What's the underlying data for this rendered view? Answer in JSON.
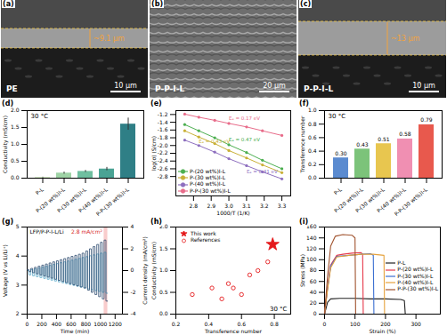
{
  "images": [
    {
      "panel": "(a)",
      "thickness": "~9.1 μm",
      "label": "PE",
      "scale_bar": "10 μm"
    },
    {
      "panel": "(b)",
      "label": "P-P-I-L",
      "scale_bar": "20 μm"
    },
    {
      "panel": "(c)",
      "thickness": "~13 μm",
      "label": "P-P-I-L",
      "scale_bar": "10 μm"
    }
  ],
  "chart_data": [
    {
      "panel": "(d)",
      "type": "bar",
      "annotation": "30 °C",
      "y_label": "Conductivity (mS/cm)",
      "categories": [
        "P-L",
        "P-(20 wt%)I-L",
        "P-(30 wt%)I-L",
        "P-(40 wt%)I-L",
        "P-P-(30 wt%)I-L"
      ],
      "values": [
        0.02,
        0.15,
        0.2,
        0.27,
        1.6
      ],
      "errors": [
        0.01,
        0.03,
        0.03,
        0.05,
        0.18
      ],
      "colors": [
        "#c9e6b8",
        "#9fd3a6",
        "#6fbfa0",
        "#4aa394",
        "#2f7f86"
      ],
      "ylim": [
        0,
        2
      ],
      "yticks": [
        {
          "value": 0,
          "label": "0.0"
        },
        0.5,
        {
          "value": 1,
          "label": "1.0"
        },
        1.5,
        {
          "value": 2,
          "label": "2.0"
        }
      ]
    },
    {
      "panel": "(e)",
      "type": "line",
      "marker": "circle",
      "legend": "bottom-left",
      "x_label": "1000/T (1/K)",
      "y_label": "log(σ) (S/cm)",
      "x": [
        2.75,
        2.83,
        2.92,
        3.0,
        3.1,
        3.19,
        3.3
      ],
      "series": [
        {
          "name": "P-(20 wt%)I-L",
          "color": "#4caf50",
          "label": "Eₐ = 0.47 eV",
          "values": [
            -1.46,
            -1.62,
            -1.8,
            -1.98,
            -2.18,
            -2.38,
            -2.6
          ]
        },
        {
          "name": "P-(30 wt%)I-L",
          "color": "#c9b037",
          "label": "Eₐ = 0.43 eV",
          "values": [
            -1.62,
            -1.78,
            -1.95,
            -2.13,
            -2.32,
            -2.5,
            -2.7
          ]
        },
        {
          "name": "P-(40 wt%)I-L",
          "color": "#8e6fbf",
          "label": "Eₐ = 0.41 eV",
          "values": [
            -1.86,
            -2.0,
            -2.17,
            -2.34,
            -2.52,
            -2.68,
            -2.86
          ]
        },
        {
          "name": "P-P-(30 wt%)I-L",
          "color": "#e86c8a",
          "label": "Eₐ = 0.17 eV",
          "values": [
            -1.19,
            -1.27,
            -1.35,
            -1.43,
            -1.52,
            -1.62,
            -1.74
          ]
        }
      ],
      "xlim": [
        2.7,
        3.35
      ],
      "xticks": [
        2.8,
        2.9,
        {
          "value": 3.0,
          "label": "3.0"
        },
        3.1,
        3.2,
        3.3
      ],
      "ylim": [
        -3.3,
        -1.1
      ],
      "yticks": [
        -1.2,
        -1.4,
        -1.6,
        -1.8,
        {
          "value": -2.0,
          "label": "-2.0"
        },
        -2.2,
        -2.4,
        -2.6,
        -2.8
      ]
    },
    {
      "panel": "(f)",
      "type": "bar",
      "annotation": "30 °C",
      "data_labels": true,
      "y_label": "Transference number",
      "categories": [
        "P-L",
        "P-(20 wt%)I-L",
        "P-(30 wt%)I-L",
        "P-(40 wt%)I-L",
        "P-P-(30 wt%)I-L"
      ],
      "values": [
        0.3,
        0.43,
        0.51,
        0.58,
        0.79
      ],
      "value_labels": [
        "0.30",
        "0.43",
        "0.51",
        "0.58",
        "0.79"
      ],
      "colors": [
        "#5b8bd0",
        "#7cc37a",
        "#e8c64f",
        "#f08fb2",
        "#e8594d"
      ],
      "ylim": [
        0,
        1
      ],
      "yticks": [
        {
          "value": 0,
          "label": "0.0"
        },
        0.2,
        0.4,
        0.6,
        0.8,
        {
          "value": 1,
          "label": "1.0"
        }
      ]
    },
    {
      "panel": "(g)",
      "type": "line",
      "line_style": "step",
      "cell_label": "LFP/P-P-I-L/Li",
      "annotation": "2.8 mA/cm²",
      "highlight": [
        1050,
        1100
      ],
      "x_label": "Time (min)",
      "y_label": "Voltage (V vs Li/Li⁺)",
      "y2_label": "Current density (mA/cm²)",
      "x": [
        0,
        25,
        50,
        75,
        100,
        125,
        150,
        175,
        200,
        225,
        250,
        275,
        300,
        325,
        350,
        375,
        400,
        425,
        450,
        475,
        500,
        525,
        550,
        575,
        600,
        625,
        650,
        675,
        700,
        725,
        750,
        775,
        800,
        825,
        850,
        875,
        900,
        925,
        950,
        975,
        1000,
        1025,
        1050,
        1075,
        1100
      ],
      "series": [
        {
          "axis": "y",
          "color": "#5aa9c9",
          "values": [
            3.5,
            3.35,
            3.53,
            3.32,
            3.56,
            3.29,
            3.59,
            3.26,
            3.62,
            3.23,
            3.65,
            3.2,
            3.68,
            3.17,
            3.71,
            3.14,
            3.74,
            3.11,
            3.77,
            3.08,
            3.8,
            3.05,
            3.83,
            3.02,
            3.86,
            2.99,
            3.89,
            2.96,
            3.92,
            2.93,
            3.95,
            2.9,
            3.98,
            2.87,
            4.01,
            2.84,
            4.04,
            2.81,
            4.07,
            2.78,
            4.1,
            2.75,
            4.13,
            2.72,
            2.72
          ]
        },
        {
          "axis": "y2",
          "color": "#2c4a6e",
          "values": [
            0.1,
            -0.1,
            0.2,
            -0.2,
            0.3,
            -0.3,
            0.4,
            -0.4,
            0.5,
            -0.5,
            0.6,
            -0.6,
            0.7,
            -0.7,
            0.8,
            -0.8,
            0.9,
            -0.9,
            1.0,
            -1.0,
            1.1,
            -1.1,
            1.2,
            -1.2,
            1.3,
            -1.3,
            1.4,
            -1.4,
            1.5,
            -1.5,
            1.6,
            -1.6,
            1.8,
            -1.8,
            2.0,
            -2.0,
            2.2,
            -2.2,
            2.4,
            -2.4,
            2.6,
            -2.6,
            2.8,
            -2.8,
            -2.8
          ]
        }
      ],
      "xlim": [
        0,
        1300
      ],
      "xticks": [
        0,
        200,
        400,
        600,
        800,
        1000,
        1200
      ],
      "ylim": [
        2,
        5
      ],
      "yticks": [
        2,
        3,
        4,
        5
      ],
      "y2lim": [
        -4,
        4
      ],
      "y2ticks": [
        -4,
        -2,
        0,
        2,
        4
      ]
    },
    {
      "panel": "(h)",
      "type": "scatter",
      "annotation": "30 °C",
      "legend": "top-left",
      "x_label": "Transference number",
      "y_label": "Conductivity (mS/cm)",
      "series": [
        {
          "name": "This work",
          "color": "#e41a1c",
          "marker": "star",
          "x": [
            0.79
          ],
          "values": [
            1.6
          ]
        },
        {
          "name": "References",
          "color": "#e41a1c",
          "marker": "open_circle",
          "x": [
            0.3,
            0.42,
            0.48,
            0.52,
            0.55,
            0.6,
            0.65,
            0.7,
            0.76
          ],
          "values": [
            0.45,
            0.6,
            0.35,
            0.7,
            0.6,
            0.45,
            0.9,
            1.0,
            1.2
          ]
        }
      ],
      "xlim": [
        0.2,
        0.9
      ],
      "xticks": [
        0.2,
        0.4,
        0.6,
        0.8
      ],
      "ylim": [
        0,
        2
      ],
      "yticks": [
        {
          "value": 0,
          "label": "0.0"
        },
        0.5,
        {
          "value": 1,
          "label": "1.0"
        },
        1.5,
        {
          "value": 2,
          "label": "2.0"
        }
      ]
    },
    {
      "panel": "(i)",
      "type": "line",
      "legend": "right",
      "x_label": "Strain (%)",
      "y_label": "Stress (MPa)",
      "series": [
        {
          "name": "P-L",
          "color": "#222222",
          "x": [
            0,
            10,
            20,
            50,
            100,
            150,
            200,
            250,
            262,
            265
          ],
          "values": [
            0,
            22,
            28,
            29,
            29,
            28,
            28,
            27,
            25,
            0
          ]
        },
        {
          "name": "P-(20 wt%)I-L",
          "color": "#e6394b",
          "x": [
            0,
            10,
            20,
            40,
            60,
            90,
            120,
            125,
            127
          ],
          "values": [
            0,
            50,
            90,
            108,
            110,
            112,
            113,
            110,
            0
          ]
        },
        {
          "name": "P-(30 wt%)I-L",
          "color": "#3b6fd1",
          "x": [
            0,
            10,
            20,
            40,
            80,
            120,
            150,
            160,
            162
          ],
          "values": [
            0,
            48,
            88,
            106,
            108,
            110,
            111,
            108,
            0
          ]
        },
        {
          "name": "P-(40 wt%)I-L",
          "color": "#e6a23c",
          "x": [
            0,
            10,
            20,
            40,
            80,
            120,
            160,
            195,
            197
          ],
          "values": [
            0,
            45,
            85,
            105,
            108,
            110,
            110,
            108,
            0
          ]
        },
        {
          "name": "P-P-(30 wt%)I-L",
          "color": "#a0522d",
          "x": [
            0,
            10,
            20,
            35,
            60,
            90,
            100,
            102
          ],
          "values": [
            0,
            70,
            125,
            143,
            146,
            145,
            140,
            0
          ]
        }
      ],
      "xlim": [
        0,
        380
      ],
      "xticks": [
        0,
        100,
        200,
        300
      ],
      "ylim": [
        0,
        160
      ],
      "yticks": [
        0,
        20,
        40,
        60,
        80,
        100,
        120,
        140,
        160
      ]
    }
  ]
}
